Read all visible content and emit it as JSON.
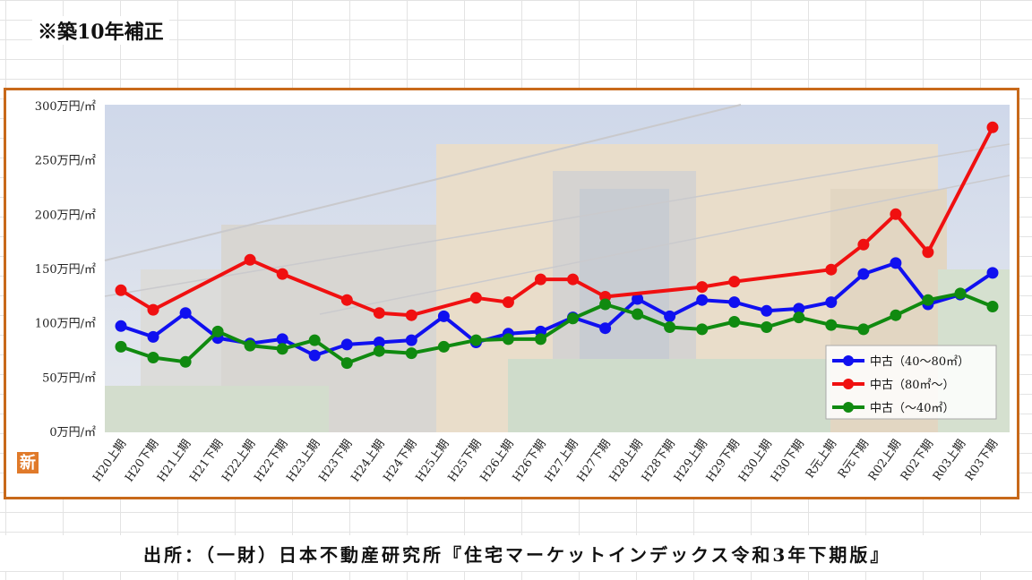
{
  "note": "※築10年補正",
  "source": "出所：（一財）日本不動産研究所『住宅マーケットインデックス令和3年下期版』",
  "logo_char": "新",
  "colors": {
    "frame": "#c8691a",
    "series": [
      "#1010f0",
      "#f01010",
      "#108a10"
    ]
  },
  "chart_data": {
    "type": "line",
    "title": "",
    "xlabel": "",
    "ylabel": "",
    "ylim": [
      0,
      300
    ],
    "yticks": [
      "0万円/㎡",
      "50万円/㎡",
      "100万円/㎡",
      "150万円/㎡",
      "200万円/㎡",
      "250万円/㎡",
      "300万円/㎡"
    ],
    "grid": false,
    "legend_position": "bottom-right",
    "categories": [
      "H20上期",
      "H20下期",
      "H21上期",
      "H21下期",
      "H22上期",
      "H22下期",
      "H23上期",
      "H23下期",
      "H24上期",
      "H24下期",
      "H25上期",
      "H25下期",
      "H26上期",
      "H26下期",
      "H27上期",
      "H27下期",
      "H28上期",
      "H28下期",
      "H29上期",
      "H29下期",
      "H30上期",
      "H30下期",
      "R元上期",
      "R元下期",
      "R02上期",
      "R02下期",
      "R03上期",
      "R03下期"
    ],
    "series": [
      {
        "name": "中古（40〜80㎡）",
        "color": "#1010f0",
        "values": [
          97,
          87,
          109,
          86,
          81,
          85,
          70,
          80,
          82,
          84,
          106,
          82,
          90,
          92,
          105,
          95,
          122,
          106,
          121,
          119,
          111,
          113,
          119,
          145,
          155,
          117,
          126,
          146
        ]
      },
      {
        "name": "中古（80㎡〜）",
        "color": "#f01010",
        "values": [
          130,
          112,
          null,
          null,
          158,
          145,
          null,
          121,
          109,
          107,
          null,
          123,
          119,
          140,
          140,
          124,
          null,
          null,
          133,
          138,
          null,
          null,
          149,
          172,
          200,
          165,
          null,
          280
        ]
      },
      {
        "name": "中古（〜40㎡）",
        "color": "#108a10",
        "values": [
          78,
          68,
          64,
          92,
          79,
          76,
          84,
          63,
          74,
          72,
          78,
          84,
          85,
          85,
          104,
          117,
          108,
          96,
          94,
          101,
          96,
          105,
          98,
          94,
          107,
          121,
          127,
          115
        ]
      }
    ]
  }
}
